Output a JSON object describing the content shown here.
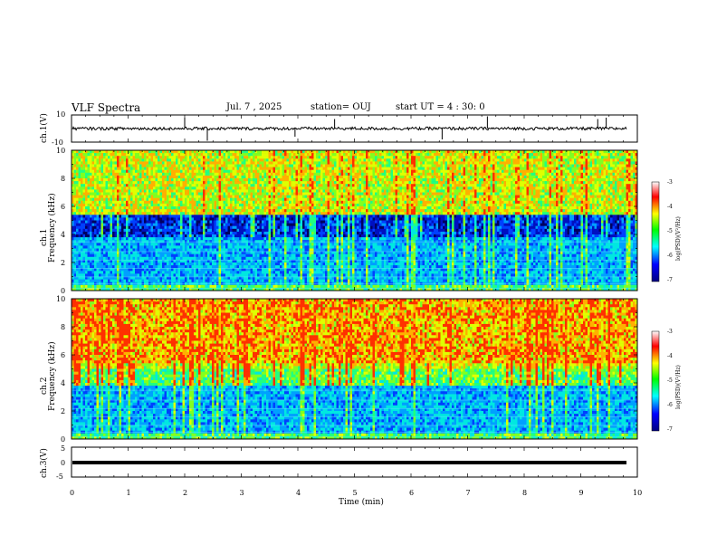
{
  "header": {
    "title": "VLF Spectra",
    "date": "Jul. 7 , 2025",
    "station": "station= OUJ",
    "start": "start UT = 4 : 30: 0"
  },
  "colors": {
    "spectrogram_background": "#0a1a9a",
    "colormap": [
      "#000080",
      "#0000ff",
      "#00ffff",
      "#00ff00",
      "#ffff00",
      "#ff0000",
      "#ffffff"
    ]
  },
  "chart_data": [
    {
      "type": "line",
      "panel": "ch1-waveform",
      "ylabel": "ch.1(V)",
      "ylim": [
        -10,
        10
      ],
      "yticks": [
        "10",
        "-10"
      ],
      "xlim": [
        0,
        10
      ],
      "series": [
        {
          "values_note": "",
          "baseline": 0
        }
      ]
    },
    {
      "type": "heatmap",
      "panel": "ch1-spectrogram",
      "ylabel_line1": "ch.1",
      "ylabel_line2": "Frequency (kHz)",
      "ylim": [
        0,
        10
      ],
      "yticks": [
        "0",
        "2",
        "4",
        "6",
        "8",
        "10"
      ],
      "xlim": [
        0,
        10
      ],
      "colorbar": {
        "label": "log(PSD)(V²/Hz)",
        "range": [
          -7,
          -3
        ],
        "ticks": [
          "-3",
          "-4",
          "-5",
          "-6",
          "-7"
        ]
      }
    },
    {
      "type": "heatmap",
      "panel": "ch2-spectrogram",
      "ylabel_line1": "ch.2",
      "ylabel_line2": "Frequency (kHz)",
      "ylim": [
        0,
        10
      ],
      "yticks": [
        "0",
        "2",
        "4",
        "6",
        "8",
        "10"
      ],
      "xlim": [
        0,
        10
      ],
      "colorbar": {
        "label": "log(PSD)(V²/Hz)",
        "range": [
          -7,
          -3
        ],
        "ticks": [
          "-3",
          "-4",
          "-5",
          "-6",
          "-7"
        ]
      }
    },
    {
      "type": "line",
      "panel": "ch3-waveform",
      "ylabel": "ch.3(V)",
      "ylim": [
        -5,
        5
      ],
      "yticks": [
        "5",
        "0",
        "-5"
      ],
      "xlim": [
        0,
        10
      ],
      "series": [
        {
          "baseline": -1
        }
      ]
    }
  ],
  "xaxis": {
    "label": "Time (min)",
    "ticks": [
      "0",
      "1",
      "2",
      "3",
      "4",
      "5",
      "6",
      "7",
      "8",
      "9",
      "10"
    ]
  }
}
